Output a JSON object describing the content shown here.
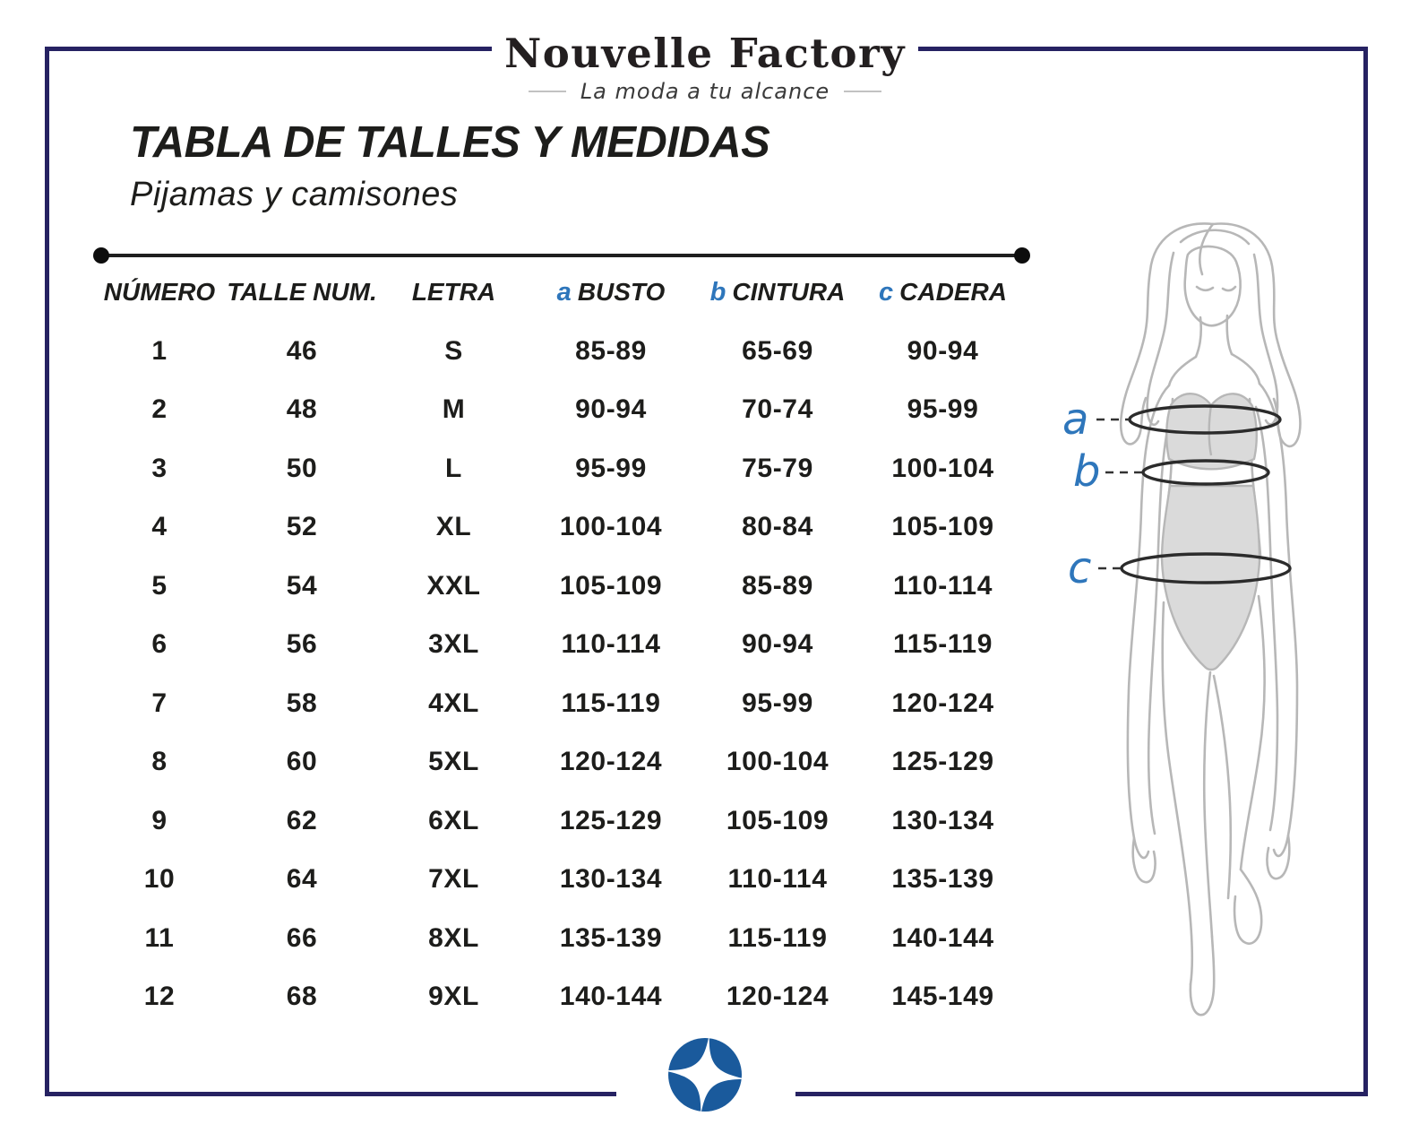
{
  "brand": {
    "name": "Nouvelle Factory",
    "tagline": "La moda a tu alcance"
  },
  "title": "TABLA DE TALLES Y MEDIDAS",
  "subtitle": "Pijamas y camisones",
  "size_table": {
    "columns": [
      {
        "key": "numero",
        "prefix": "",
        "label": "NÚMERO"
      },
      {
        "key": "talle",
        "prefix": "",
        "label": "TALLE NUM."
      },
      {
        "key": "letra",
        "prefix": "",
        "label": "LETRA"
      },
      {
        "key": "busto",
        "prefix": "a",
        "label": "BUSTO"
      },
      {
        "key": "cintura",
        "prefix": "b",
        "label": "CINTURA"
      },
      {
        "key": "cadera",
        "prefix": "c",
        "label": "CADERA"
      }
    ],
    "rows": [
      [
        "1",
        "46",
        "S",
        "85-89",
        "65-69",
        "90-94"
      ],
      [
        "2",
        "48",
        "M",
        "90-94",
        "70-74",
        "95-99"
      ],
      [
        "3",
        "50",
        "L",
        "95-99",
        "75-79",
        "100-104"
      ],
      [
        "4",
        "52",
        "XL",
        "100-104",
        "80-84",
        "105-109"
      ],
      [
        "5",
        "54",
        "XXL",
        "105-109",
        "85-89",
        "110-114"
      ],
      [
        "6",
        "56",
        "3XL",
        "110-114",
        "90-94",
        "115-119"
      ],
      [
        "7",
        "58",
        "4XL",
        "115-119",
        "95-99",
        "120-124"
      ],
      [
        "8",
        "60",
        "5XL",
        "120-124",
        "100-104",
        "125-129"
      ],
      [
        "9",
        "62",
        "6XL",
        "125-129",
        "105-109",
        "130-134"
      ],
      [
        "10",
        "64",
        "7XL",
        "130-134",
        "110-114",
        "135-139"
      ],
      [
        "11",
        "66",
        "8XL",
        "135-139",
        "115-119",
        "140-144"
      ],
      [
        "12",
        "68",
        "9XL",
        "140-144",
        "120-124",
        "145-149"
      ]
    ]
  },
  "figure": {
    "labels": {
      "a": "a",
      "b": "b",
      "c": "c"
    }
  },
  "colors": {
    "navy": "#262262",
    "accent_blue": "#2e76bb",
    "logo_blue": "#1a5a9c",
    "text": "#1d1d1b",
    "sketch_gray": "#b7b7b7",
    "garment_gray": "#dadada"
  }
}
